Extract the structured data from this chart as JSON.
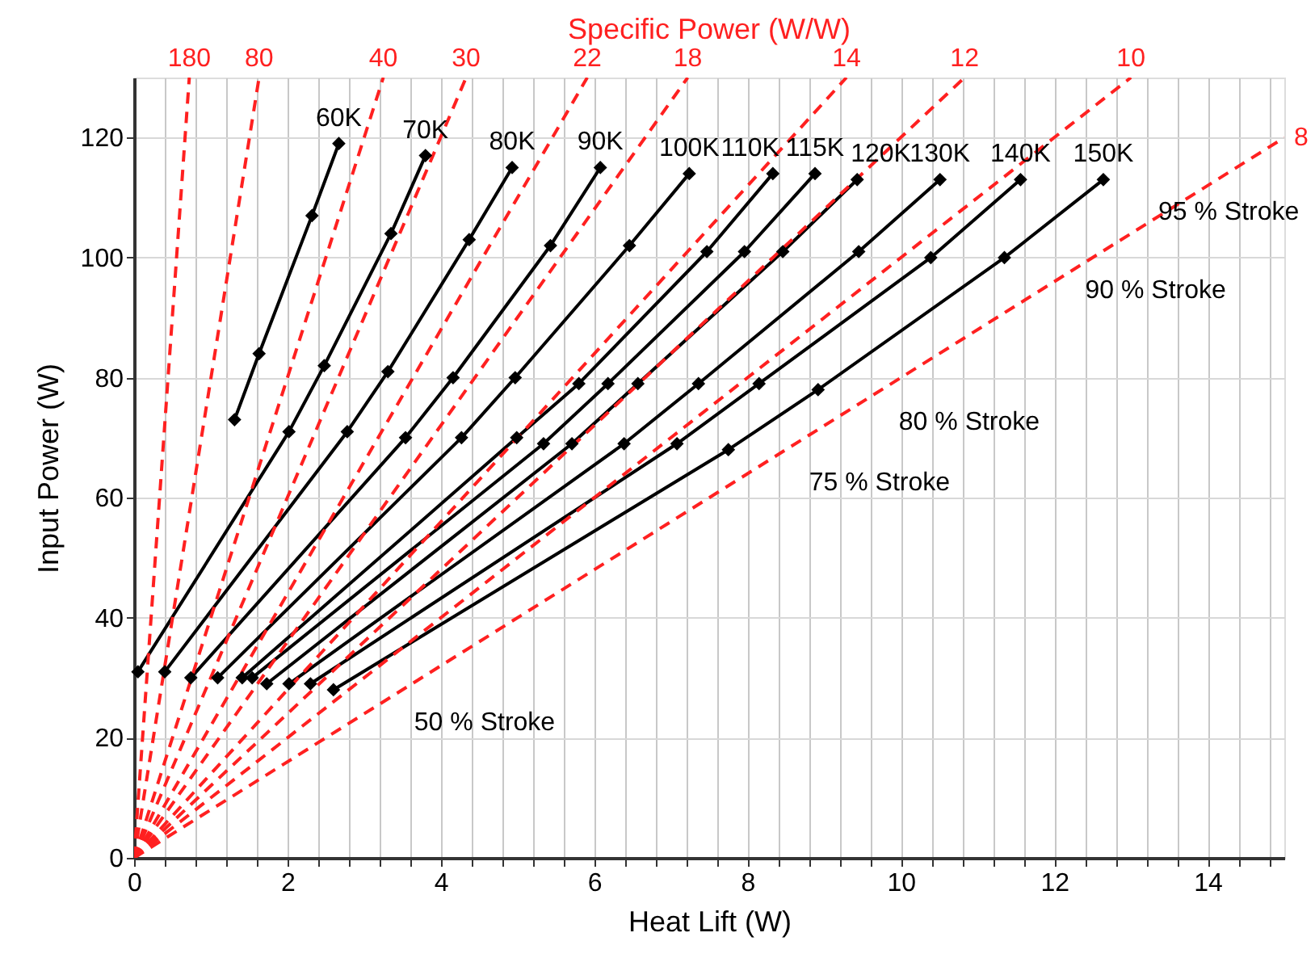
{
  "chart_data": {
    "type": "line",
    "title": "Specific Power  (W/W)",
    "xlabel": "Heat Lift  (W)",
    "ylabel": "Input Power  (W)",
    "xlim": [
      0,
      15
    ],
    "ylim": [
      0,
      130
    ],
    "xticks": [
      0,
      {
        "value": 0.4,
        "label": null
      },
      {
        "value": 0.8,
        "label": null
      },
      {
        "value": 1.2,
        "label": null
      },
      {
        "value": 1.6,
        "label": null
      },
      2,
      {
        "value": 2.4,
        "label": null
      },
      {
        "value": 2.8,
        "label": null
      },
      {
        "value": 3.2,
        "label": null
      },
      {
        "value": 3.6,
        "label": null
      },
      4,
      {
        "value": 4.4,
        "label": null
      },
      {
        "value": 4.8,
        "label": null
      },
      {
        "value": 5.2,
        "label": null
      },
      {
        "value": 5.6,
        "label": null
      },
      6,
      {
        "value": 6.4,
        "label": null
      },
      {
        "value": 6.8,
        "label": null
      },
      {
        "value": 7.2,
        "label": null
      },
      {
        "value": 7.6,
        "label": null
      },
      8,
      {
        "value": 8.4,
        "label": null
      },
      {
        "value": 8.8,
        "label": null
      },
      {
        "value": 9.2,
        "label": null
      },
      {
        "value": 9.6,
        "label": null
      },
      10,
      {
        "value": 10.4,
        "label": null
      },
      {
        "value": 10.8,
        "label": null
      },
      {
        "value": 11.2,
        "label": null
      },
      {
        "value": 11.6,
        "label": null
      },
      12,
      {
        "value": 12.4,
        "label": null
      },
      {
        "value": 12.8,
        "label": null
      },
      {
        "value": 13.2,
        "label": null
      },
      {
        "value": 13.6,
        "label": null
      },
      14,
      {
        "value": 14.4,
        "label": null
      },
      {
        "value": 14.8,
        "label": null
      }
    ],
    "yticks": [
      0,
      20,
      40,
      60,
      80,
      100,
      120
    ],
    "grid": true,
    "legend": false,
    "marker": "diamond",
    "line_style": "solid",
    "series": [
      {
        "name": "60K",
        "color": "#000000",
        "x": [
          1.31,
          1.63,
          2.32,
          2.67
        ],
        "values": [
          73,
          84,
          107,
          119
        ]
      },
      {
        "name": "70K",
        "color": "#000000",
        "x": [
          0.05,
          2.02,
          2.48,
          3.35,
          3.8
        ],
        "values": [
          31,
          71,
          82,
          104,
          117
        ]
      },
      {
        "name": "80K",
        "color": "#000000",
        "x": [
          0.4,
          2.78,
          3.31,
          4.37,
          4.93
        ],
        "values": [
          31,
          71,
          81,
          103,
          115
        ]
      },
      {
        "name": "90K",
        "color": "#000000",
        "x": [
          0.74,
          3.54,
          4.16,
          5.43,
          6.08
        ],
        "values": [
          30,
          70,
          80,
          102,
          115
        ]
      },
      {
        "name": "100K",
        "color": "#000000",
        "x": [
          1.09,
          4.27,
          4.97,
          6.46,
          7.24
        ],
        "values": [
          30,
          70,
          80,
          102,
          114
        ]
      },
      {
        "name": "110K",
        "color": "#000000",
        "x": [
          1.41,
          4.99,
          5.8,
          7.47,
          8.33
        ],
        "values": [
          30,
          70,
          79,
          101,
          114
        ]
      },
      {
        "name": "115K",
        "color": "#000000",
        "x": [
          1.54,
          5.34,
          6.18,
          7.96,
          8.88
        ],
        "values": [
          30,
          69,
          79,
          101,
          114
        ]
      },
      {
        "name": "120K",
        "color": "#000000",
        "x": [
          1.73,
          5.71,
          6.57,
          8.46,
          9.43
        ],
        "values": [
          29,
          69,
          79,
          101,
          113
        ]
      },
      {
        "name": "130K",
        "color": "#000000",
        "x": [
          2.02,
          6.39,
          7.36,
          9.45,
          10.51
        ],
        "values": [
          29,
          69,
          79,
          101,
          113
        ]
      },
      {
        "name": "140K",
        "color": "#000000",
        "x": [
          2.3,
          7.08,
          8.15,
          10.39,
          11.56
        ],
        "values": [
          29,
          69,
          79,
          100,
          113
        ]
      },
      {
        "name": "150K",
        "color": "#000000",
        "x": [
          2.6,
          7.75,
          8.92,
          11.35,
          12.64
        ],
        "values": [
          28,
          68,
          78,
          100,
          113
        ]
      },
      {
        "name": "180",
        "color": "#ff2020",
        "line_style": "dashed",
        "marker": "none",
        "x": [
          0,
          0.72
        ],
        "values": [
          0,
          130
        ]
      },
      {
        "name": "80",
        "color": "#ff2020",
        "line_style": "dashed",
        "marker": "none",
        "x": [
          0,
          1.63
        ],
        "values": [
          0,
          130
        ]
      },
      {
        "name": "40",
        "color": "#ff2020",
        "line_style": "dashed",
        "marker": "none",
        "x": [
          0,
          3.25
        ],
        "values": [
          0,
          130
        ]
      },
      {
        "name": "30",
        "color": "#ff2020",
        "line_style": "dashed",
        "marker": "none",
        "x": [
          0,
          4.33
        ],
        "values": [
          0,
          130
        ]
      },
      {
        "name": "22",
        "color": "#ff2020",
        "line_style": "dashed",
        "marker": "none",
        "x": [
          0,
          5.91
        ],
        "values": [
          0,
          130
        ]
      },
      {
        "name": "18",
        "color": "#ff2020",
        "line_style": "dashed",
        "marker": "none",
        "x": [
          0,
          7.22
        ],
        "values": [
          0,
          130
        ]
      },
      {
        "name": "14",
        "color": "#ff2020",
        "line_style": "dashed",
        "marker": "none",
        "x": [
          0,
          9.29
        ],
        "values": [
          0,
          130
        ]
      },
      {
        "name": "12",
        "color": "#ff2020",
        "line_style": "dashed",
        "marker": "none",
        "x": [
          0,
          10.83
        ],
        "values": [
          0,
          130
        ]
      },
      {
        "name": "10",
        "color": "#ff2020",
        "line_style": "dashed",
        "marker": "none",
        "x": [
          0,
          13.0
        ],
        "values": [
          0,
          130
        ]
      },
      {
        "name": "8",
        "color": "#ff2020",
        "line_style": "dashed",
        "marker": "none",
        "x": [
          0,
          15
        ],
        "values": [
          0,
          120
        ]
      }
    ],
    "annotations": [
      "50 % Stroke",
      "75 % Stroke",
      "80 % Stroke",
      "90 % Stroke",
      "95 % Stroke"
    ]
  }
}
